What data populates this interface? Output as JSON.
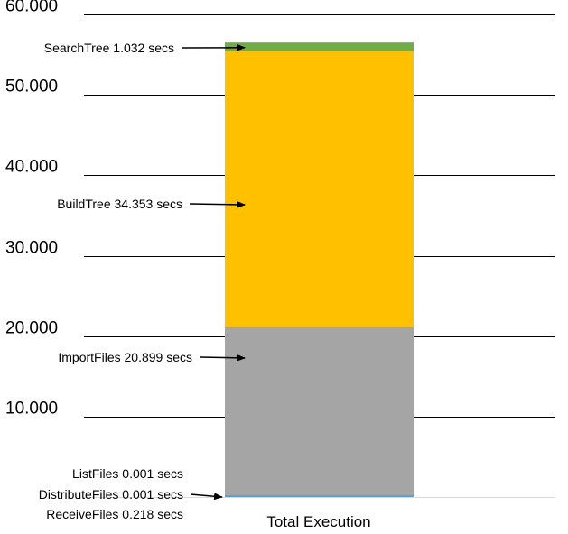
{
  "chart_data": {
    "type": "bar",
    "stacked": true,
    "categories": [
      "Total Execution"
    ],
    "ylim": [
      0,
      60
    ],
    "yticks": [
      "60.000",
      "50.000",
      "40.000",
      "30.000",
      "20.000",
      "10.000"
    ],
    "grid": true,
    "series": [
      {
        "name": "ReceiveFiles",
        "values": [
          0.218
        ],
        "color": "#5B9BD5"
      },
      {
        "name": "DistributeFiles",
        "values": [
          0.001
        ],
        "color": "#ED7D31"
      },
      {
        "name": "ListFiles",
        "values": [
          0.001
        ],
        "color": "#4472C4"
      },
      {
        "name": "ImportFiles",
        "values": [
          20.899
        ],
        "color": "#A5A5A5"
      },
      {
        "name": "BuildTree",
        "values": [
          34.353
        ],
        "color": "#FFC000"
      },
      {
        "name": "SearchTree",
        "values": [
          1.032
        ],
        "color": "#70AD47"
      }
    ],
    "annotations": [
      {
        "text": "SearchTree 1.032 secs",
        "target": "SearchTree"
      },
      {
        "text": "BuildTree 34.353 secs",
        "target": "BuildTree"
      },
      {
        "text": "ImportFiles 20.899 secs",
        "target": "ImportFiles"
      },
      {
        "text": "ListFiles 0.001 secs",
        "target": "ListFiles"
      },
      {
        "text": "DistributeFiles 0.001 secs",
        "target": "DistributeFiles"
      },
      {
        "text": "ReceiveFiles 0.218 secs",
        "target": "ReceiveFiles"
      }
    ]
  }
}
